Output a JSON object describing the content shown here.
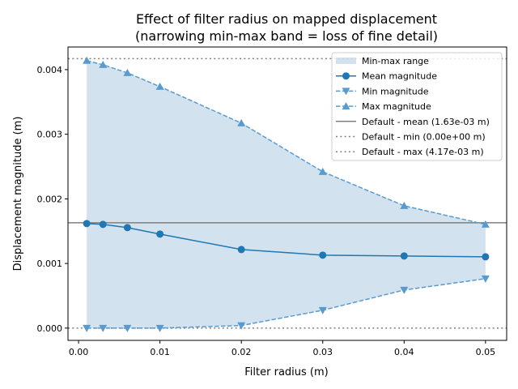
{
  "chart_data": {
    "type": "line",
    "title": "Effect of filter radius on mapped displacement",
    "subtitle": "(narrowing min-max band = loss of fine detail)",
    "xlabel": "Filter radius (m)",
    "ylabel": "Displacement magnitude (m)",
    "xlim": [
      -0.0013,
      0.0526
    ],
    "ylim": [
      -0.00019,
      0.00435
    ],
    "xticks": [
      0.0,
      0.01,
      0.02,
      0.03,
      0.04,
      0.05
    ],
    "xtick_labels": [
      "0.00",
      "0.01",
      "0.02",
      "0.03",
      "0.04",
      "0.05"
    ],
    "yticks": [
      0.0,
      0.001,
      0.002,
      0.003,
      0.004
    ],
    "ytick_labels": [
      "0.000",
      "0.001",
      "0.002",
      "0.003",
      "0.004"
    ],
    "grid": false,
    "legend_placement": "top-right",
    "x": [
      0.001,
      0.003,
      0.006,
      0.01,
      0.02,
      0.03,
      0.04,
      0.05
    ],
    "band": {
      "name": "Min-max range",
      "color": "#a6c8e0"
    },
    "series": [
      {
        "name": "Mean magnitude",
        "color": "#1f77b4",
        "marker": "circle",
        "style": "solid",
        "values": [
          0.001618,
          0.001605,
          0.001555,
          0.001455,
          0.001216,
          0.001129,
          0.001116,
          0.001103
        ]
      },
      {
        "name": "Min magnitude",
        "color": "#5a9bcf",
        "marker": "triangle-down",
        "style": "dashed",
        "values": [
          0.0,
          0.0,
          0.0,
          0.0,
          4e-05,
          0.000276,
          0.000589,
          0.000765
        ]
      },
      {
        "name": "Max magnitude",
        "color": "#5a9bcf",
        "marker": "triangle-up",
        "style": "dashed",
        "values": [
          0.00414,
          0.004075,
          0.00395,
          0.003737,
          0.003172,
          0.00242,
          0.001893,
          0.001605
        ]
      }
    ],
    "reference_lines": [
      {
        "name": "Default - mean (1.63e-03 m)",
        "value": 0.00163,
        "style": "solid",
        "color": "#7f7f7f"
      },
      {
        "name": "Default - min (0.00e+00 m)",
        "value": 0.0,
        "style": "dotted",
        "color": "#7f7f7f"
      },
      {
        "name": "Default - max (4.17e-03 m)",
        "value": 0.00417,
        "style": "dotted",
        "color": "#7f7f7f"
      }
    ]
  }
}
